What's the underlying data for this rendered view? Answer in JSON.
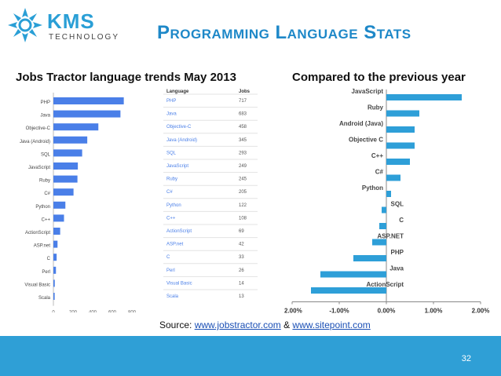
{
  "logo": {
    "brand": "KMS",
    "tagline": "TECHNOLOGY"
  },
  "slide": {
    "title": "Programming Language Stats",
    "left_heading": "Jobs Tractor language trends May 2013",
    "right_heading": "Compared to the previous year",
    "source_prefix": "Source: ",
    "source_link1": "www.jobstractor.com",
    "source_mid": " & ",
    "source_link2": "www.sitepoint.com",
    "page_number": "32"
  },
  "colors": {
    "accent": "#2f9fd6",
    "title": "#1e88c8",
    "bar_left": "#4a7fe8",
    "bar_right": "#2e9fd8"
  },
  "chart_data": [
    {
      "type": "bar",
      "orientation": "horizontal",
      "categories": [
        "PHP",
        "Java",
        "Objective-C",
        "Java (Android)",
        "SQL",
        "JavaScript",
        "Ruby",
        "C#",
        "Python",
        "C++",
        "ActionScript",
        "ASP.net",
        "C",
        "Perl",
        "Visual Basic",
        "Scala"
      ],
      "values": [
        717,
        683,
        458,
        345,
        293,
        249,
        245,
        205,
        122,
        108,
        69,
        42,
        33,
        26,
        14,
        13
      ],
      "xlim": [
        0,
        800
      ],
      "xticks": [
        "0",
        "200",
        "400",
        "600",
        "800"
      ],
      "table": {
        "headers": [
          "Language",
          "Jobs"
        ],
        "rows": [
          [
            "PHP",
            "717"
          ],
          [
            "Java",
            "683"
          ],
          [
            "Objective-C",
            "458"
          ],
          [
            "Java (Android)",
            "345"
          ],
          [
            "SQL",
            "293"
          ],
          [
            "JavaScript",
            "249"
          ],
          [
            "Ruby",
            "245"
          ],
          [
            "C#",
            "205"
          ],
          [
            "Python",
            "122"
          ],
          [
            "C++",
            "108"
          ],
          [
            "ActionScript",
            "69"
          ],
          [
            "ASP.net",
            "42"
          ],
          [
            "C",
            "33"
          ],
          [
            "Perl",
            "26"
          ],
          [
            "Visual Basic",
            "14"
          ],
          [
            "Scala",
            "13"
          ]
        ]
      }
    },
    {
      "type": "bar",
      "orientation": "horizontal",
      "categories": [
        "JavaScript",
        "Ruby",
        "Android (Java)",
        "Objective C",
        "C++",
        "C#",
        "Python",
        "SQL",
        "C",
        "ASP.NET",
        "PHP",
        "Java",
        "ActionScript"
      ],
      "values": [
        1.6,
        0.7,
        0.6,
        0.6,
        0.5,
        0.3,
        0.1,
        -0.1,
        -0.15,
        -0.3,
        -0.7,
        -1.4,
        -1.6
      ],
      "xlim": [
        -2,
        2
      ],
      "xticks": [
        "-2.00%",
        "-1.00%",
        "0.00%",
        "1.00%",
        "2.00%"
      ]
    }
  ]
}
